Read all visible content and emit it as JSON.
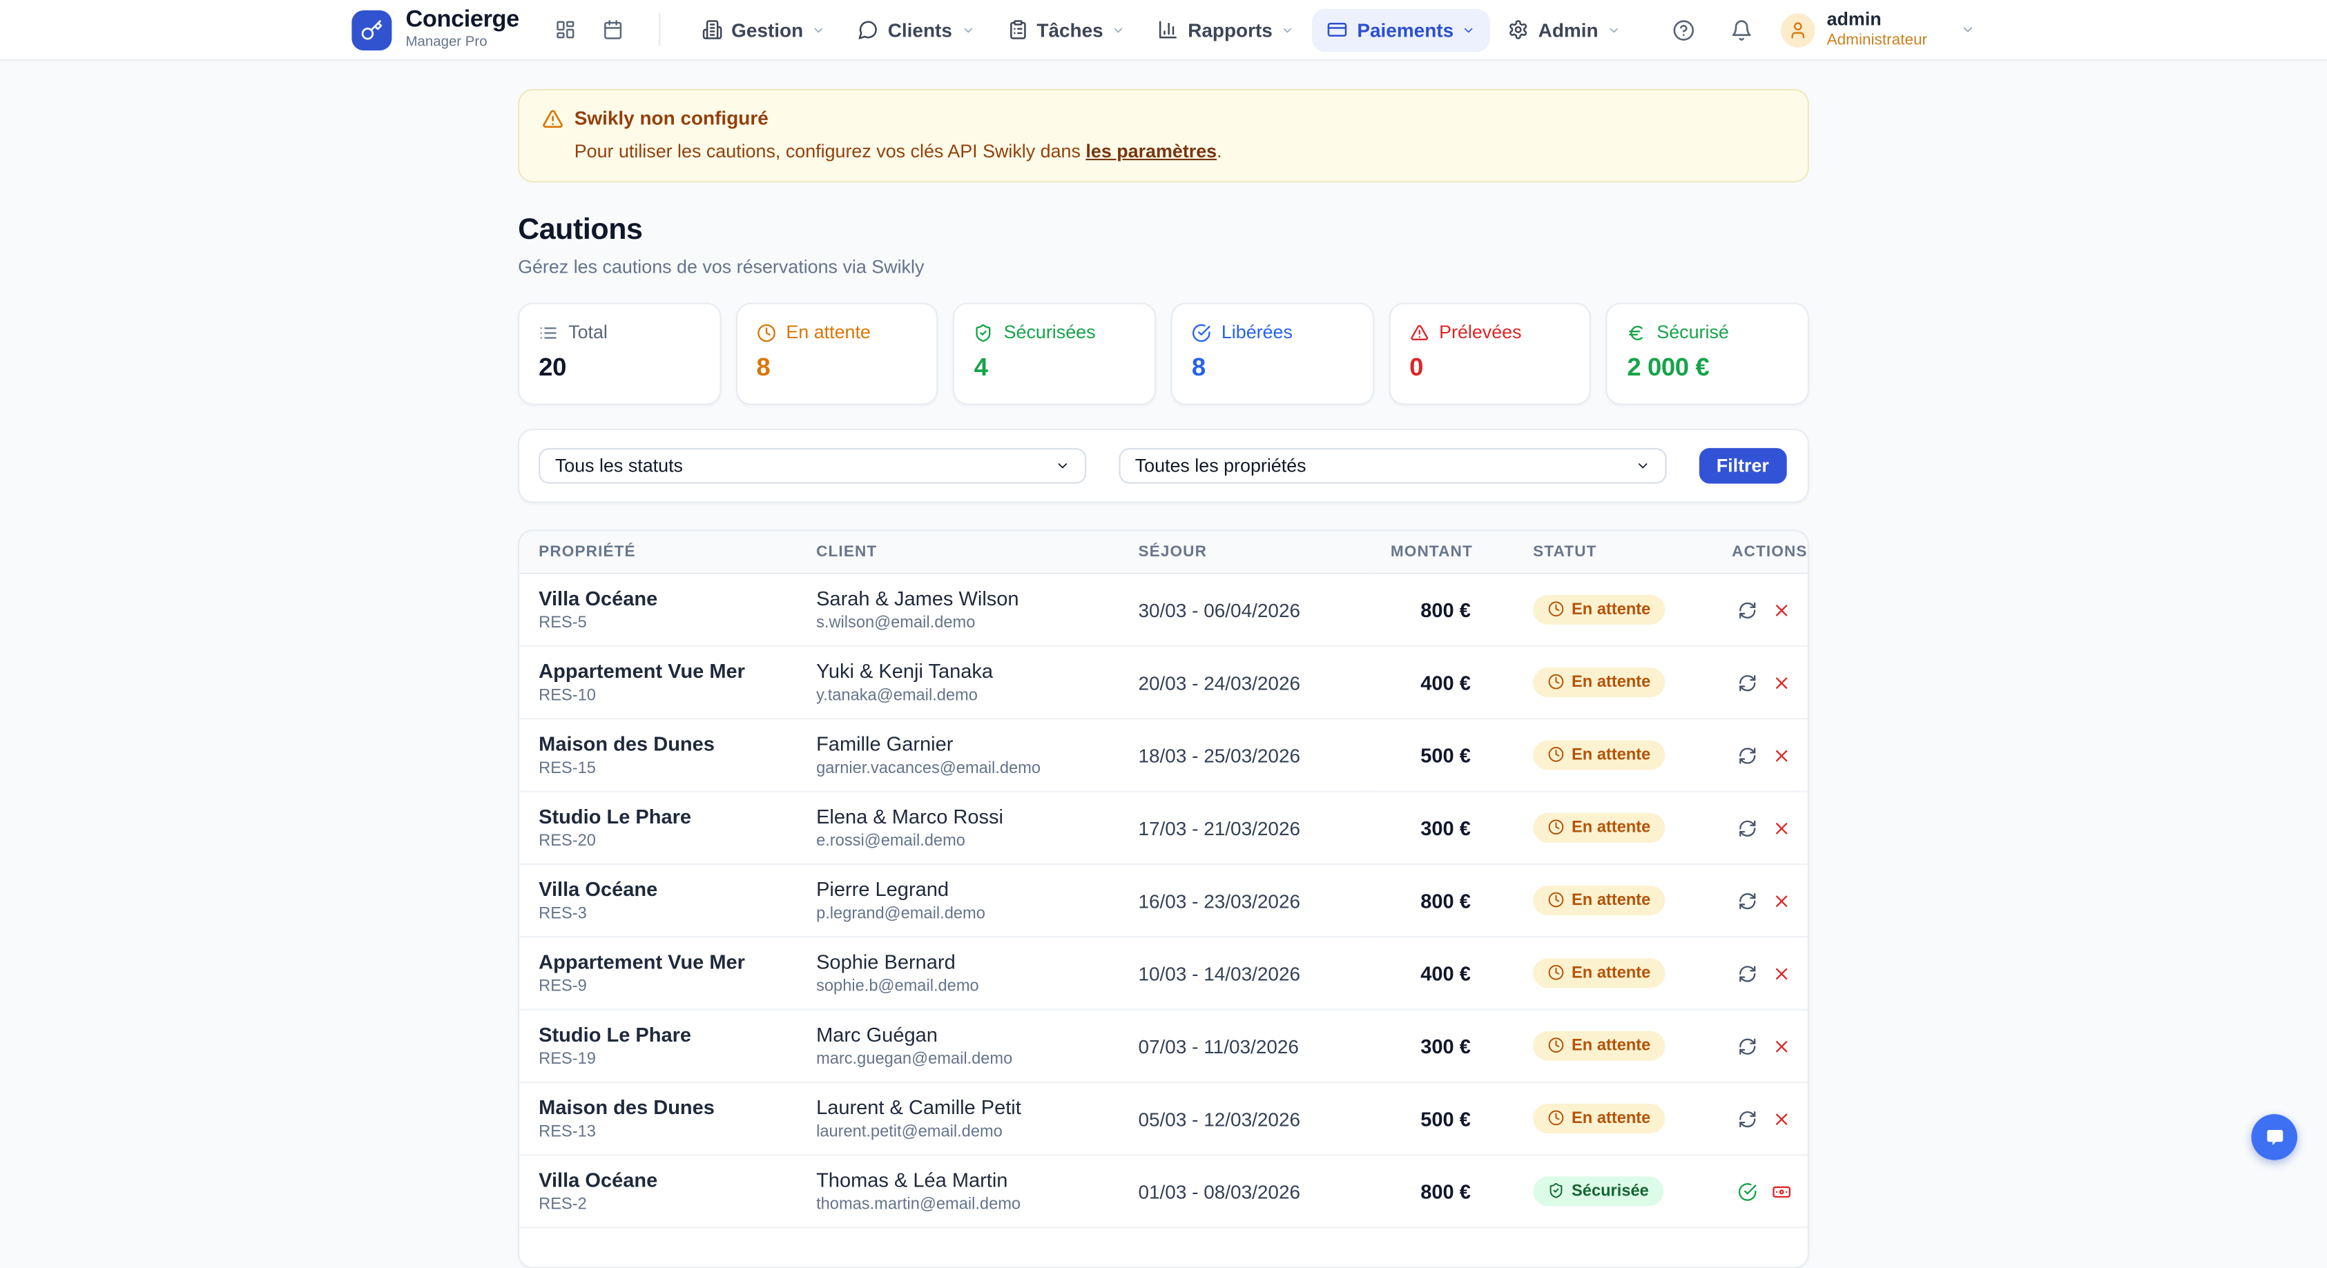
{
  "brand": {
    "name": "Concierge",
    "tagline": "Manager Pro"
  },
  "nav": {
    "menus": [
      {
        "label": "Gestion"
      },
      {
        "label": "Clients"
      },
      {
        "label": "Tâches"
      },
      {
        "label": "Rapports"
      },
      {
        "label": "Paiements",
        "active": true
      },
      {
        "label": "Admin"
      }
    ],
    "user": {
      "name": "admin",
      "role": "Administrateur"
    }
  },
  "alert": {
    "title": "Swikly non configuré",
    "body": "Pour utiliser les cautions, configurez vos clés API Swikly dans",
    "link_label": "les paramètres",
    "suffix": "."
  },
  "page": {
    "title": "Cautions",
    "subtitle": "Gérez les cautions de vos réservations via Swikly"
  },
  "stats": [
    {
      "label": "Total",
      "value": "20",
      "icon": "list-icon",
      "color": "#0f172a"
    },
    {
      "label": "En attente",
      "value": "8",
      "icon": "clock-icon",
      "color": "#d97706"
    },
    {
      "label": "Sécurisées",
      "value": "4",
      "icon": "shield-check-icon",
      "color": "#16a34a"
    },
    {
      "label": "Libérées",
      "value": "8",
      "icon": "check-circle-icon",
      "color": "#2563eb"
    },
    {
      "label": "Prélevées",
      "value": "0",
      "icon": "alert-triangle-icon",
      "color": "#dc2626"
    },
    {
      "label": "Sécurisé",
      "value": "2 000 €",
      "icon": "euro-icon",
      "color": "#16a34a"
    }
  ],
  "filters": {
    "status": "Tous les statuts",
    "property": "Toutes les propriétés",
    "submit_label": "Filtrer"
  },
  "table": {
    "headers": [
      "Propriété",
      "Client",
      "Séjour",
      "Montant",
      "Statut",
      "Actions"
    ],
    "rows": [
      {
        "property": "Villa Océane",
        "ref": "RES-5",
        "client": "Sarah & James Wilson",
        "email": "s.wilson@email.demo",
        "dates": "30/03 - 06/04/2026",
        "amount": "800 €",
        "status": "pending",
        "status_label": "En attente",
        "actions": [
          "refresh",
          "cancel"
        ]
      },
      {
        "property": "Appartement Vue Mer",
        "ref": "RES-10",
        "client": "Yuki & Kenji Tanaka",
        "email": "y.tanaka@email.demo",
        "dates": "20/03 - 24/03/2026",
        "amount": "400 €",
        "status": "pending",
        "status_label": "En attente",
        "actions": [
          "refresh",
          "cancel"
        ]
      },
      {
        "property": "Maison des Dunes",
        "ref": "RES-15",
        "client": "Famille Garnier",
        "email": "garnier.vacances@email.demo",
        "dates": "18/03 - 25/03/2026",
        "amount": "500 €",
        "status": "pending",
        "status_label": "En attente",
        "actions": [
          "refresh",
          "cancel"
        ]
      },
      {
        "property": "Studio Le Phare",
        "ref": "RES-20",
        "client": "Elena & Marco Rossi",
        "email": "e.rossi@email.demo",
        "dates": "17/03 - 21/03/2026",
        "amount": "300 €",
        "status": "pending",
        "status_label": "En attente",
        "actions": [
          "refresh",
          "cancel"
        ]
      },
      {
        "property": "Villa Océane",
        "ref": "RES-3",
        "client": "Pierre Legrand",
        "email": "p.legrand@email.demo",
        "dates": "16/03 - 23/03/2026",
        "amount": "800 €",
        "status": "pending",
        "status_label": "En attente",
        "actions": [
          "refresh",
          "cancel"
        ]
      },
      {
        "property": "Appartement Vue Mer",
        "ref": "RES-9",
        "client": "Sophie Bernard",
        "email": "sophie.b@email.demo",
        "dates": "10/03 - 14/03/2026",
        "amount": "400 €",
        "status": "pending",
        "status_label": "En attente",
        "actions": [
          "refresh",
          "cancel"
        ]
      },
      {
        "property": "Studio Le Phare",
        "ref": "RES-19",
        "client": "Marc Guégan",
        "email": "marc.guegan@email.demo",
        "dates": "07/03 - 11/03/2026",
        "amount": "300 €",
        "status": "pending",
        "status_label": "En attente",
        "actions": [
          "refresh",
          "cancel"
        ]
      },
      {
        "property": "Maison des Dunes",
        "ref": "RES-13",
        "client": "Laurent & Camille Petit",
        "email": "laurent.petit@email.demo",
        "dates": "05/03 - 12/03/2026",
        "amount": "500 €",
        "status": "pending",
        "status_label": "En attente",
        "actions": [
          "refresh",
          "cancel"
        ]
      },
      {
        "property": "Villa Océane",
        "ref": "RES-2",
        "client": "Thomas & Léa Martin",
        "email": "thomas.martin@email.demo",
        "dates": "01/03 - 08/03/2026",
        "amount": "800 €",
        "status": "secured",
        "status_label": "Sécurisée",
        "actions": [
          "validate",
          "charge"
        ]
      }
    ]
  },
  "colors": {
    "brand_blue": "#3253cf",
    "active_nav_blue": "#2b4fd0",
    "page_bg": "#f8fafc",
    "warning_bg": "#fefce8",
    "warning_text": "#92400e",
    "pending_badge_bg": "#fcf2d0",
    "pending_badge_text": "#b45309",
    "secured_badge_bg": "#dcfce7",
    "secured_badge_text": "#166534",
    "danger_red": "#dc2626",
    "success_green": "#16a34a"
  }
}
